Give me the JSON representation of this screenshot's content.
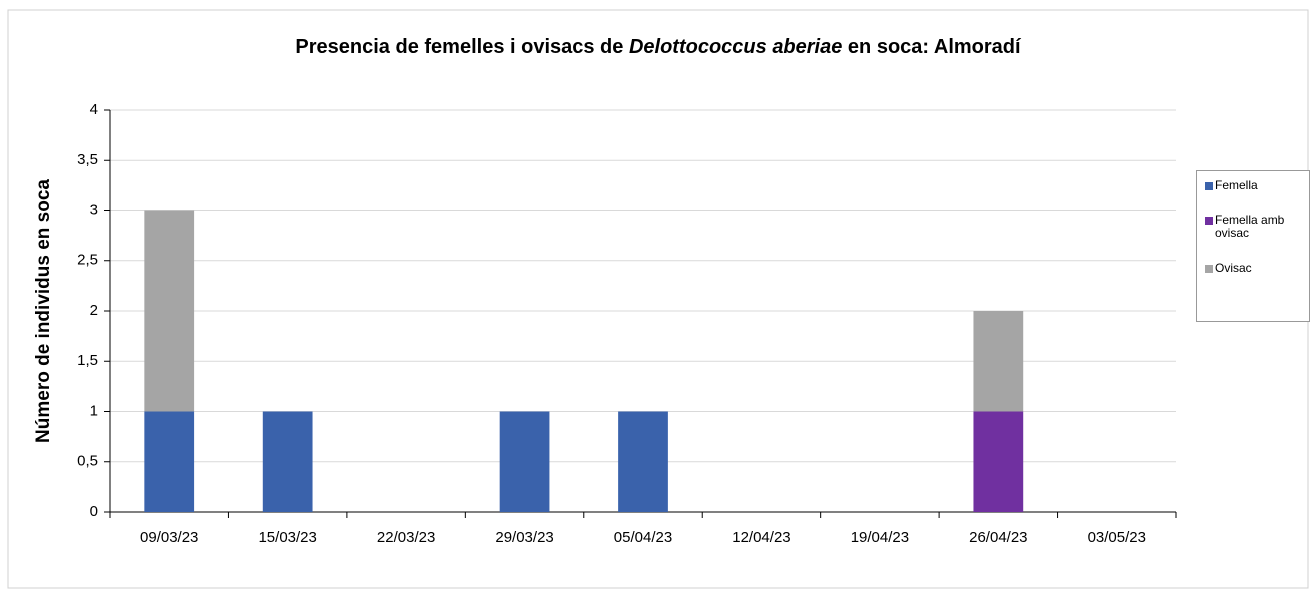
{
  "chart_data": {
    "type": "stacked_bar",
    "title": [
      "Presencia de femelles i ovisacs de ",
      "Delottococcus aberiae",
      " en soca: Almoradí"
    ],
    "y_label": "Número de individus en soca",
    "categories": [
      "09/03/23",
      "15/03/23",
      "22/03/23",
      "29/03/23",
      "05/04/23",
      "12/04/23",
      "19/04/23",
      "26/04/23",
      "03/05/23"
    ],
    "series": [
      {
        "name": "Femella",
        "color": "#3a62ab",
        "values": [
          1,
          1,
          0,
          1,
          1,
          0,
          0,
          0,
          0
        ]
      },
      {
        "name": "Femella amb ovisac",
        "color": "#7030a0",
        "values": [
          0,
          0,
          0,
          0,
          0,
          0,
          0,
          1,
          0
        ]
      },
      {
        "name": "Ovisac",
        "color": "#a5a5a5",
        "values": [
          2,
          0,
          0,
          0,
          0,
          0,
          0,
          1,
          0
        ]
      }
    ],
    "ylim": [
      0,
      4
    ],
    "yticks": [
      0,
      {
        "value": 0.5,
        "label": "0,5"
      },
      1,
      {
        "value": 1.5,
        "label": "1,5"
      },
      2,
      {
        "value": 2.5,
        "label": "2,5"
      },
      3,
      {
        "value": 3.5,
        "label": "3,5"
      },
      4
    ],
    "grid": true,
    "legend": "right"
  }
}
